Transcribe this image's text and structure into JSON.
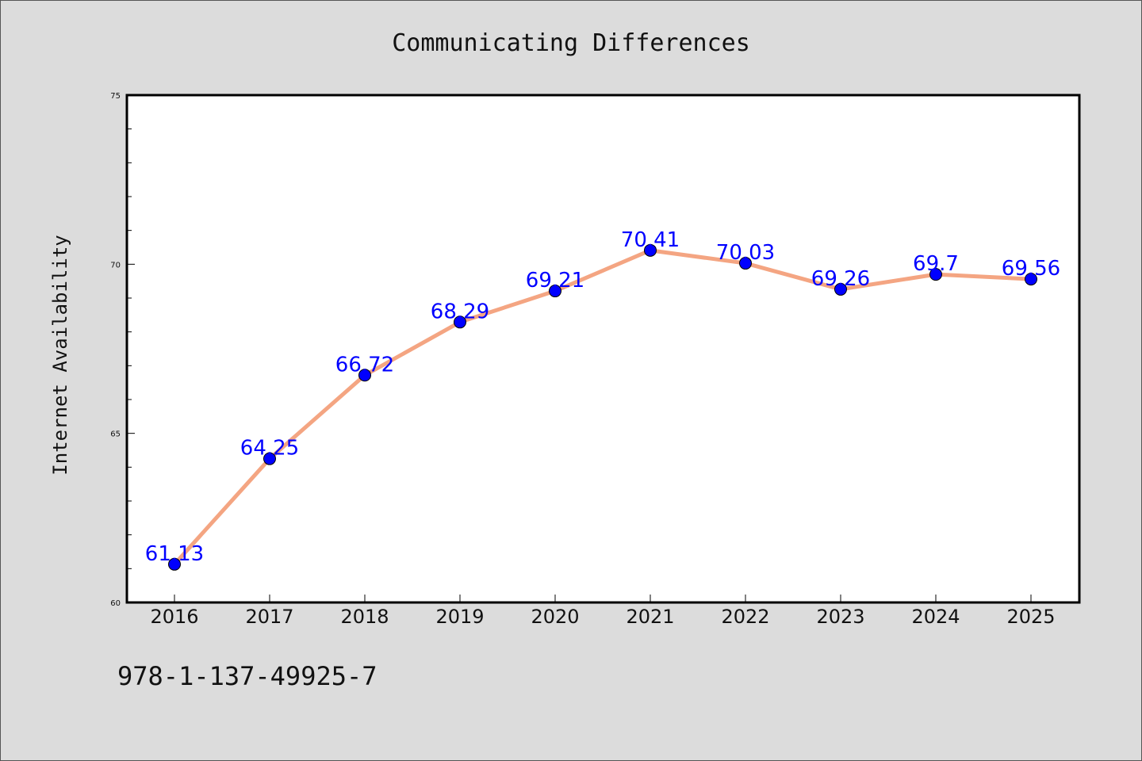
{
  "chart_data": {
    "type": "line",
    "title": "Communicating Differences",
    "xlabel": "",
    "ylabel": "Internet Availability",
    "categories": [
      "2016",
      "2017",
      "2018",
      "2019",
      "2020",
      "2021",
      "2022",
      "2023",
      "2024",
      "2025"
    ],
    "series": [
      {
        "values": [
          61.13,
          64.25,
          66.72,
          68.29,
          69.21,
          70.41,
          70.03,
          69.26,
          69.7,
          69.56
        ],
        "labels": [
          "61.13",
          "64.25",
          "66.72",
          "68.29",
          "69.21",
          "70.41",
          "70.03",
          "69.26",
          "69.7",
          "69.56"
        ],
        "line_color": "#f4a582",
        "marker_color": "#0000ff"
      }
    ],
    "ylim": [
      60,
      75
    ],
    "yticks": [
      "60",
      "65",
      "70",
      "75"
    ],
    "grid": false,
    "legend": "none"
  },
  "footer": {
    "isbn": "978-1-137-49925-7"
  }
}
